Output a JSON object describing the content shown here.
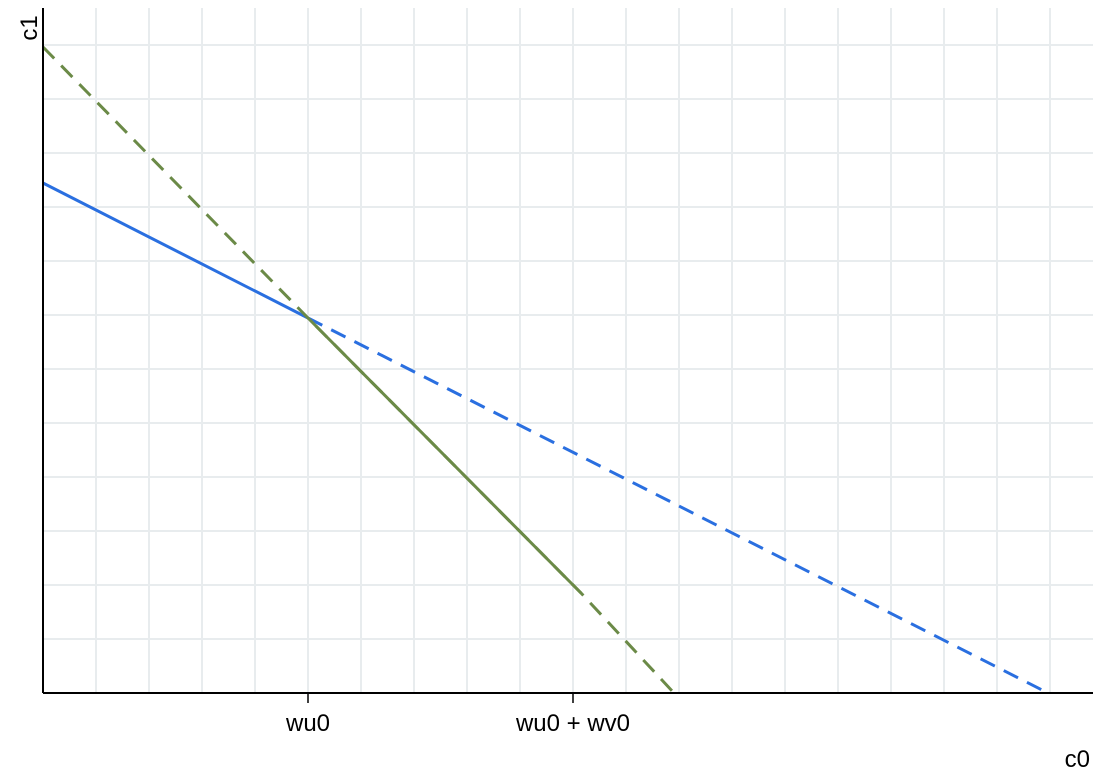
{
  "chart_data": {
    "type": "line",
    "title": "",
    "xlabel": "c0",
    "ylabel": "c1",
    "xlim": [
      0,
      1050
    ],
    "ylim": [
      0,
      676
    ],
    "grid": true,
    "legend": "none",
    "x_ticks": [
      {
        "value": 265,
        "label": "wu0"
      },
      {
        "value": 530,
        "label": "wu0 + wv0"
      }
    ],
    "series": [
      {
        "color": "#2a6fe0",
        "solid": [
          [
            0,
            510
          ],
          [
            265,
            375
          ]
        ],
        "dashed": [
          [
            265,
            375
          ],
          [
            1005,
            0
          ]
        ]
      },
      {
        "color": "#6b8a47",
        "solid": [
          [
            265,
            375
          ],
          [
            538,
            100
          ]
        ],
        "dashed": [
          [
            0,
            646
          ],
          [
            265,
            375
          ],
          [
            538,
            100
          ],
          [
            631,
            0
          ]
        ]
      }
    ]
  }
}
